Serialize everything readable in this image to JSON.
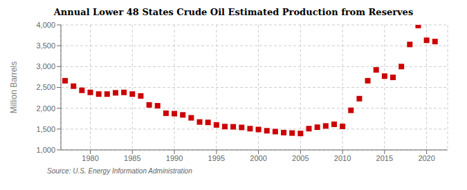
{
  "chart_data": {
    "type": "scatter",
    "title": "Annual Lower 48 States Crude Oil Estimated Production from Reserves",
    "ylabel": "Million Barrels",
    "annotations": [
      "Source: U.S. Energy Information Administration"
    ],
    "color": "#cc0000",
    "marker": "square",
    "grid": true,
    "xlim": [
      1976.5,
      2022.5
    ],
    "ylim": [
      1000,
      4000
    ],
    "xticks": [
      1980,
      1985,
      1990,
      1995,
      2000,
      2005,
      2010,
      2015,
      2020
    ],
    "yticks": [
      {
        "value": 1000,
        "label": "1,000"
      },
      {
        "value": 1500,
        "label": "1,500"
      },
      {
        "value": 2000,
        "label": "2,000"
      },
      {
        "value": 2500,
        "label": "2,500"
      },
      {
        "value": 3000,
        "label": "3,000"
      },
      {
        "value": 3500,
        "label": "3,500"
      },
      {
        "value": 4000,
        "label": "4,000"
      }
    ],
    "x": [
      1977,
      1978,
      1979,
      1980,
      1981,
      1982,
      1983,
      1984,
      1985,
      1986,
      1987,
      1988,
      1989,
      1990,
      1991,
      1992,
      1993,
      1994,
      1995,
      1996,
      1997,
      1998,
      1999,
      2000,
      2001,
      2002,
      2003,
      2004,
      2005,
      2006,
      2007,
      2008,
      2009,
      2010,
      2011,
      2012,
      2013,
      2014,
      2015,
      2016,
      2017,
      2018,
      2019,
      2020,
      2021
    ],
    "values": [
      2660,
      2530,
      2430,
      2380,
      2340,
      2340,
      2370,
      2380,
      2340,
      2295,
      2080,
      2060,
      1880,
      1870,
      1840,
      1770,
      1670,
      1660,
      1600,
      1560,
      1555,
      1540,
      1510,
      1490,
      1460,
      1440,
      1415,
      1405,
      1395,
      1510,
      1545,
      1575,
      1615,
      1565,
      1950,
      2230,
      2660,
      2920,
      2770,
      2740,
      3000,
      3530,
      3985,
      3630,
      3600
    ]
  }
}
